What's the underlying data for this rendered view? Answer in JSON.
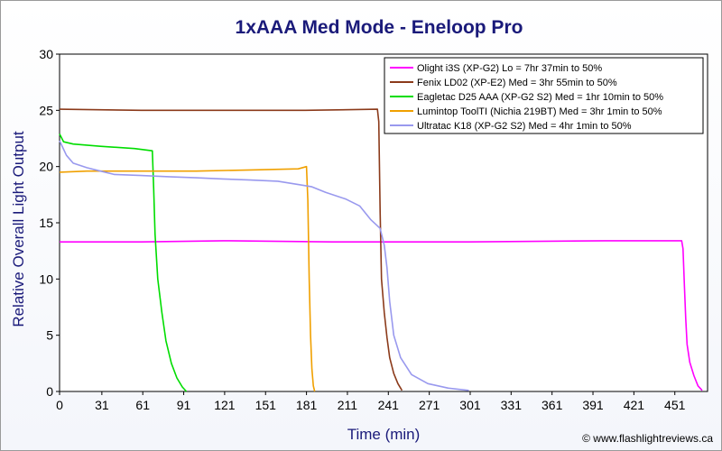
{
  "chart_data": {
    "type": "line",
    "title": "1xAAA Med Mode - Eneloop Pro",
    "xlabel": "Time (min)",
    "ylabel": "Relative Overall Light Output",
    "xlim": [
      0,
      475
    ],
    "ylim": [
      0,
      30
    ],
    "xticks": [
      0,
      31,
      61,
      91,
      121,
      151,
      181,
      211,
      241,
      271,
      301,
      331,
      361,
      391,
      421,
      451
    ],
    "yticks": [
      0,
      5,
      10,
      15,
      20,
      25,
      30
    ],
    "grid": false,
    "legend_position": "top-right",
    "series": [
      {
        "name": "Olight i3S (XP-G2) Lo = 7hr 37min to 50%",
        "color": "#ff00ff",
        "points": [
          [
            0,
            13.3
          ],
          [
            60,
            13.3
          ],
          [
            120,
            13.4
          ],
          [
            200,
            13.3
          ],
          [
            300,
            13.3
          ],
          [
            400,
            13.4
          ],
          [
            456,
            13.4
          ],
          [
            457,
            12.7
          ],
          [
            458,
            9.5
          ],
          [
            459,
            6.5
          ],
          [
            460,
            4.2
          ],
          [
            462,
            2.6
          ],
          [
            465,
            1.4
          ],
          [
            468,
            0.5
          ],
          [
            471,
            0.1
          ]
        ]
      },
      {
        "name": "Fenix LD02 (XP-E2) Med = 3hr 55min to 50%",
        "color": "#8b3a1a",
        "points": [
          [
            0,
            25.1
          ],
          [
            60,
            25.0
          ],
          [
            120,
            25.0
          ],
          [
            180,
            25.0
          ],
          [
            233,
            25.1
          ],
          [
            234,
            24.0
          ],
          [
            235,
            16.0
          ],
          [
            236,
            10.0
          ],
          [
            238,
            7.0
          ],
          [
            240,
            4.8
          ],
          [
            242,
            3.0
          ],
          [
            245,
            1.6
          ],
          [
            248,
            0.7
          ],
          [
            251,
            0.1
          ]
        ]
      },
      {
        "name": "Eagletac D25 AAA (XP-G2 S2) Med = 1hr 10min to 50%",
        "color": "#00dd00",
        "points": [
          [
            0,
            22.9
          ],
          [
            3,
            22.2
          ],
          [
            10,
            22.0
          ],
          [
            30,
            21.8
          ],
          [
            55,
            21.6
          ],
          [
            68,
            21.4
          ],
          [
            69,
            18.0
          ],
          [
            70,
            14.0
          ],
          [
            72,
            10.0
          ],
          [
            75,
            7.0
          ],
          [
            78,
            4.5
          ],
          [
            82,
            2.5
          ],
          [
            86,
            1.2
          ],
          [
            90,
            0.4
          ],
          [
            93,
            0.0
          ]
        ]
      },
      {
        "name": "Lumintop ToolTI (Nichia 219BT) Med = 3hr 1min to 50%",
        "color": "#f0a000",
        "points": [
          [
            0,
            19.5
          ],
          [
            20,
            19.6
          ],
          [
            60,
            19.6
          ],
          [
            100,
            19.6
          ],
          [
            140,
            19.7
          ],
          [
            175,
            19.8
          ],
          [
            181,
            20.0
          ],
          [
            182,
            17.0
          ],
          [
            183,
            10.0
          ],
          [
            184,
            5.0
          ],
          [
            185,
            2.0
          ],
          [
            186,
            0.5
          ],
          [
            187,
            0.0
          ]
        ]
      },
      {
        "name": "Ultratac K18 (XP-G2 S2) Med = 4hr 1min to 50%",
        "color": "#9999ee",
        "points": [
          [
            0,
            22.3
          ],
          [
            5,
            21.0
          ],
          [
            10,
            20.3
          ],
          [
            20,
            19.9
          ],
          [
            30,
            19.6
          ],
          [
            40,
            19.3
          ],
          [
            60,
            19.2
          ],
          [
            80,
            19.1
          ],
          [
            100,
            19.0
          ],
          [
            120,
            18.9
          ],
          [
            140,
            18.8
          ],
          [
            160,
            18.7
          ],
          [
            175,
            18.4
          ],
          [
            185,
            18.2
          ],
          [
            195,
            17.7
          ],
          [
            210,
            17.1
          ],
          [
            220,
            16.5
          ],
          [
            228,
            15.3
          ],
          [
            235,
            14.5
          ],
          [
            238,
            13.0
          ],
          [
            240,
            11.0
          ],
          [
            242,
            8.0
          ],
          [
            245,
            5.0
          ],
          [
            250,
            3.0
          ],
          [
            258,
            1.5
          ],
          [
            270,
            0.7
          ],
          [
            285,
            0.3
          ],
          [
            300,
            0.1
          ]
        ]
      }
    ]
  },
  "credit": "© www.flashlightreviews.ca"
}
